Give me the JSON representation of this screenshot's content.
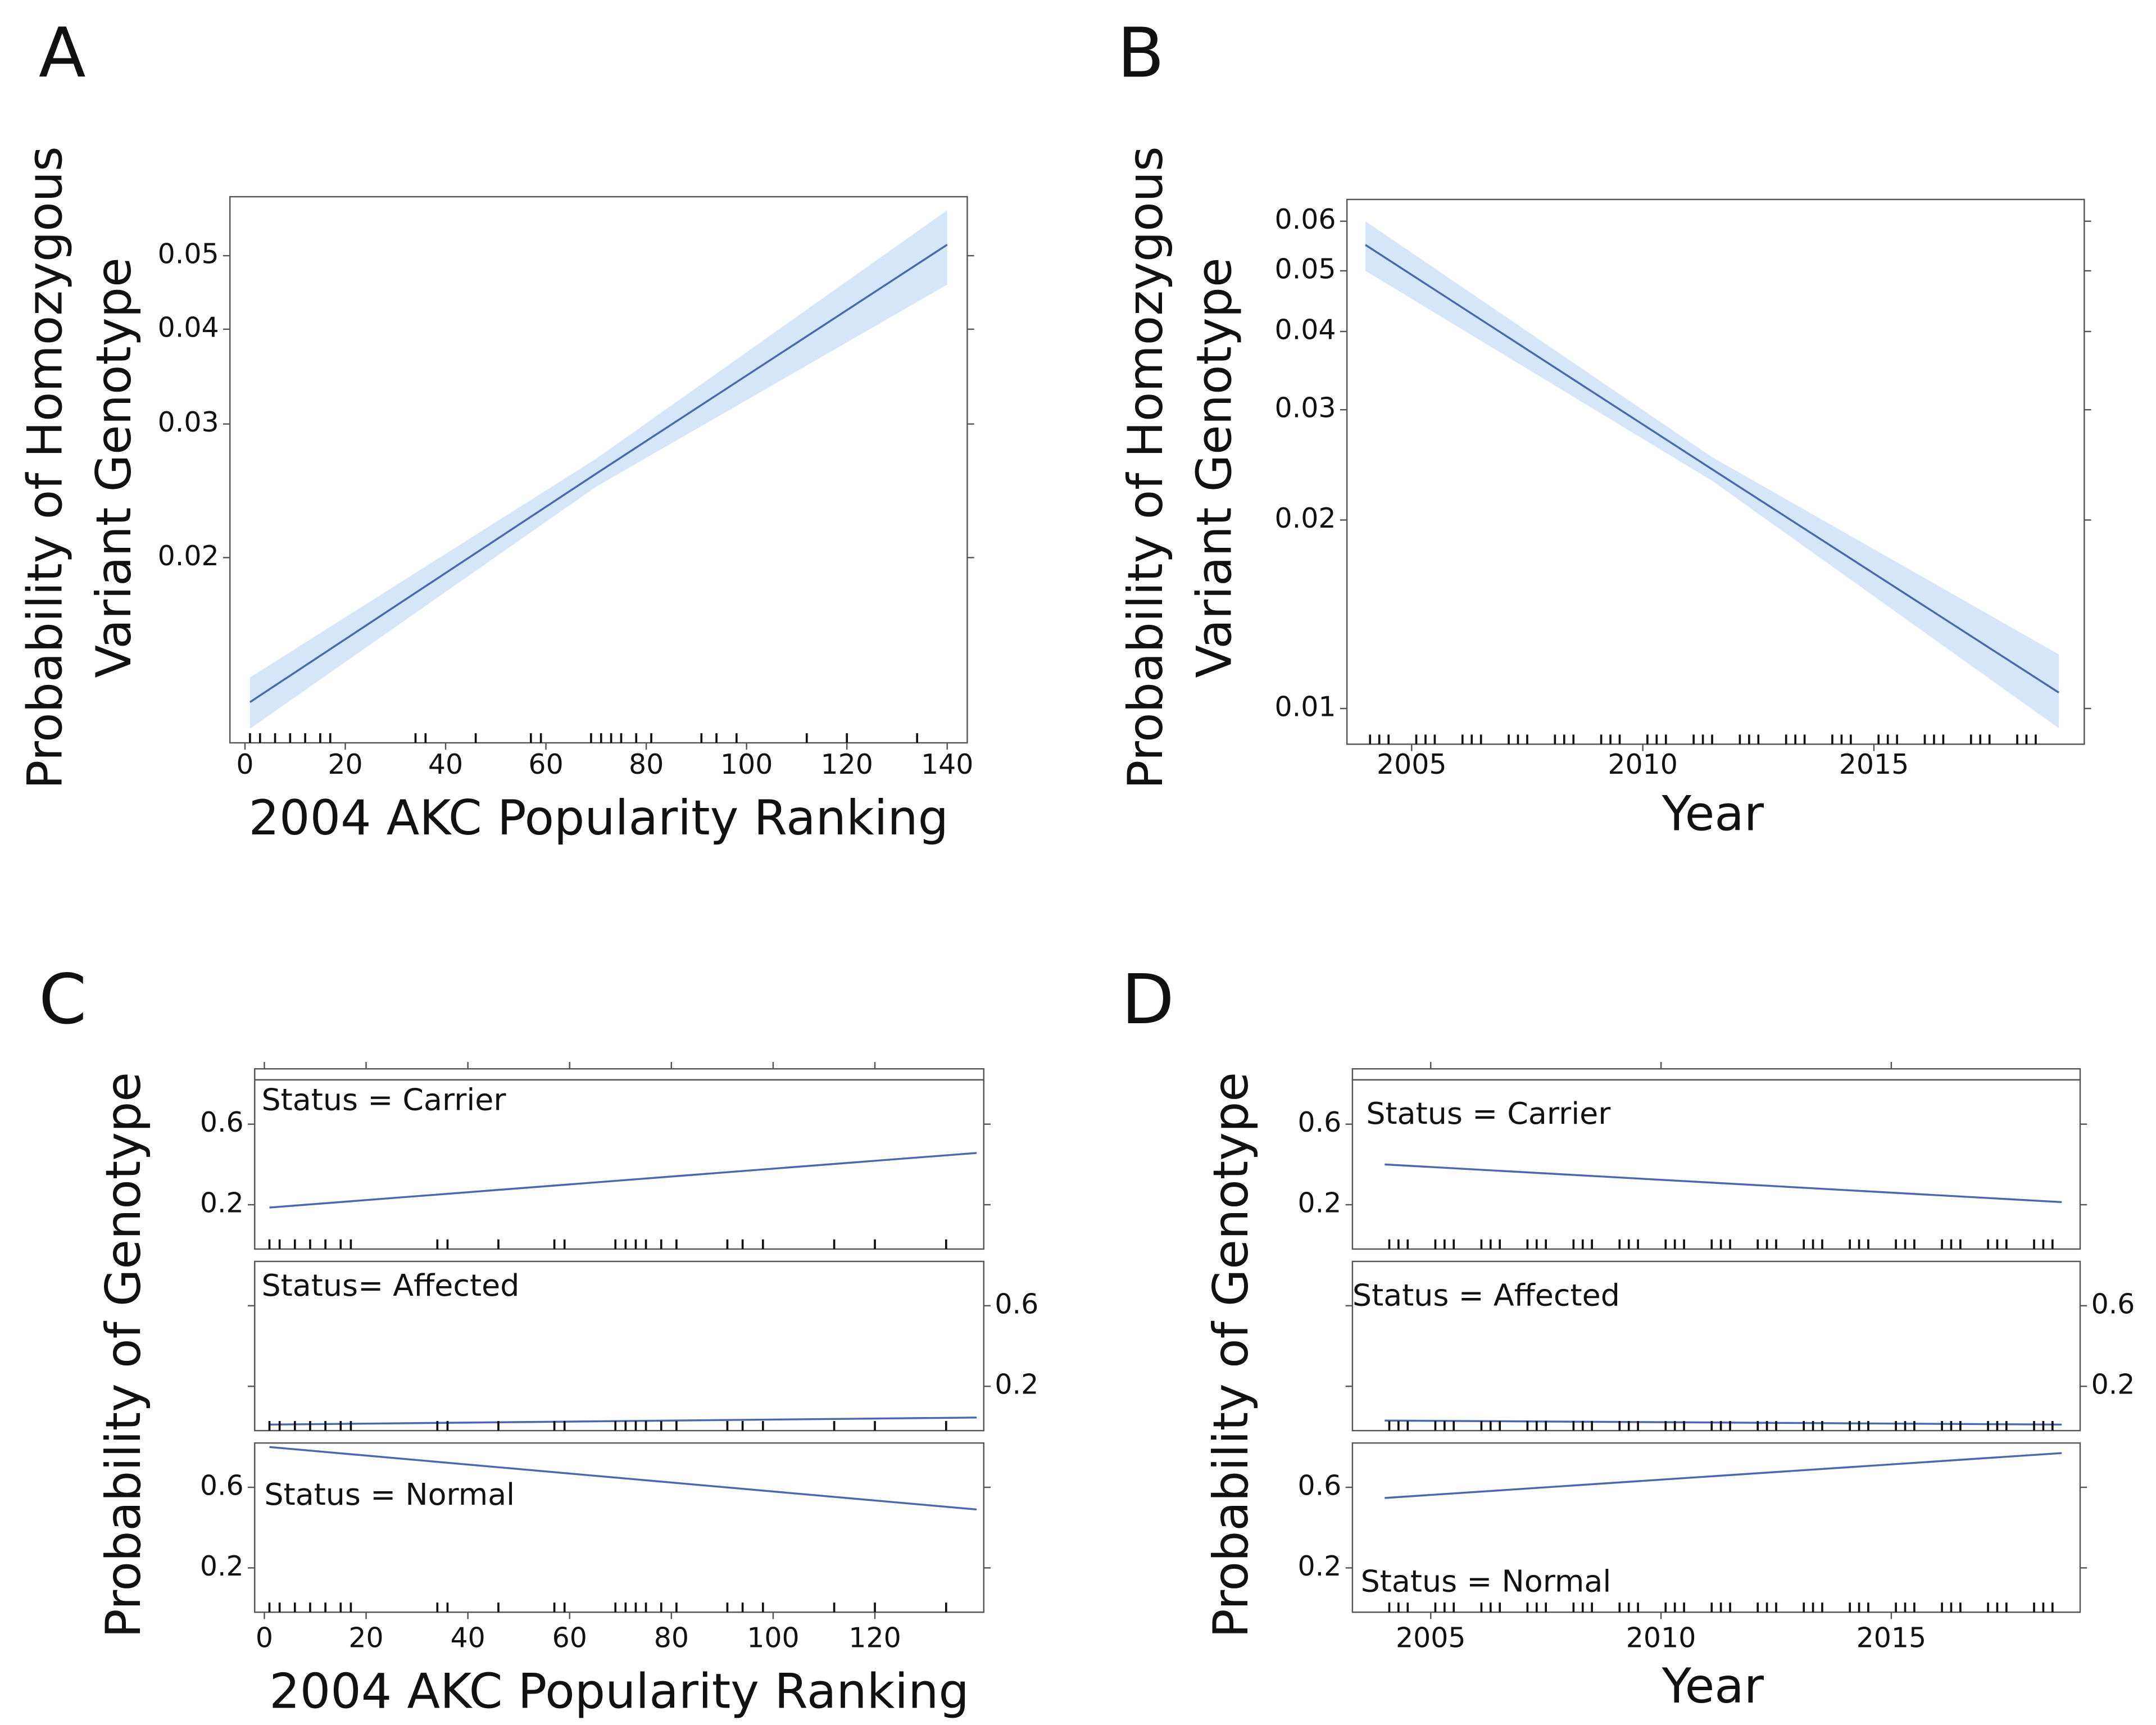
{
  "chart_data": [
    {
      "type": "line",
      "panel": "A",
      "ylabel": [
        "Probability of Homozygous",
        "Variant Genotype"
      ],
      "xlabel": "2004 AKC Popularity Ranking",
      "log_y": true,
      "xlim": [
        -3,
        144
      ],
      "ylim": [
        0.0114,
        0.0598
      ],
      "xticks": [
        0,
        20,
        40,
        60,
        80,
        100,
        120,
        140
      ],
      "yticks": [
        0.02,
        0.03,
        0.04,
        0.05
      ],
      "series": [
        {
          "color": "#4a68b0",
          "band_color": "#d4e6f7",
          "x": [
            1,
            70,
            140
          ],
          "values": [
            0.0129,
            0.0258,
            0.0517
          ],
          "lower": [
            0.0119,
            0.0248,
            0.0458
          ],
          "upper": [
            0.0139,
            0.027,
            0.0574
          ]
        }
      ],
      "rug": [
        1,
        3,
        6,
        9,
        12,
        15,
        17,
        34,
        36,
        46,
        57,
        59,
        69,
        71,
        73,
        75,
        78,
        81,
        91,
        94,
        98,
        112,
        120,
        134
      ],
      "rug_color": "#111"
    },
    {
      "type": "line",
      "panel": "B",
      "ylabel": [
        "Probability of Homozygous",
        "Variant Genotype"
      ],
      "xlabel": "Year",
      "log_y": true,
      "xlim": [
        2003.6,
        2019.55
      ],
      "ylim": [
        0.00877,
        0.065
      ],
      "xticks": [
        2005,
        2010,
        2015
      ],
      "yticks": [
        0.01,
        0.02,
        0.03,
        0.04,
        0.05,
        0.06
      ],
      "series": [
        {
          "color": "#4a68b0",
          "band_color": "#d4e6f7",
          "x": [
            2004,
            2011.5,
            2019
          ],
          "values": [
            0.055,
            0.0241,
            0.0106
          ],
          "lower": [
            0.05,
            0.0231,
            0.0093
          ],
          "upper": [
            0.06,
            0.0252,
            0.0122
          ]
        }
      ],
      "rug": [
        2004.1,
        2004.3,
        2004.5,
        2005.1,
        2005.3,
        2005.5,
        2006.1,
        2006.3,
        2006.5,
        2007.1,
        2007.3,
        2007.5,
        2008.1,
        2008.3,
        2008.5,
        2009.1,
        2009.3,
        2009.5,
        2010.1,
        2010.3,
        2010.5,
        2011.1,
        2011.3,
        2011.5,
        2012.1,
        2012.3,
        2012.5,
        2013.1,
        2013.3,
        2013.5,
        2014.1,
        2014.3,
        2014.5,
        2015.1,
        2015.3,
        2015.5,
        2016.1,
        2016.3,
        2016.5,
        2017.1,
        2017.3,
        2017.5,
        2018.1,
        2018.3,
        2018.5
      ],
      "rug_color": "#111"
    },
    {
      "type": "line",
      "panel": "C",
      "ylabel": [
        "Probability of Genotype"
      ],
      "xlabel": "2004 AKC Popularity Ranking",
      "log_y": false,
      "xlim": [
        -1.9,
        141.4
      ],
      "xticks": [
        0,
        20,
        40,
        60,
        80,
        100,
        120
      ],
      "facets": [
        {
          "label": "Status = Carrier",
          "ylim": [
            -0.02,
            0.82
          ],
          "yticks": [
            0.2,
            0.6
          ],
          "yaxis_side": "left",
          "series": [
            {
              "color": "#4a68b0",
              "x": [
                1,
                140
              ],
              "values": [
                0.186,
                0.457
              ]
            }
          ]
        },
        {
          "label": "Status= Affected",
          "ylim": [
            -0.02,
            0.82
          ],
          "yticks": [
            0.2,
            0.6
          ],
          "yaxis_side": "right",
          "series": [
            {
              "color": "#4a68b0",
              "x": [
                1,
                140
              ],
              "values": [
                0.01,
                0.045
              ]
            }
          ]
        },
        {
          "label": "Status = Normal",
          "ylim": [
            -0.02,
            0.82
          ],
          "yticks": [
            0.2,
            0.6
          ],
          "yaxis_side": "left",
          "series": [
            {
              "color": "#4a68b0",
              "x": [
                1,
                140
              ],
              "values": [
                0.8,
                0.49
              ]
            }
          ]
        }
      ],
      "rug": [
        1,
        3,
        6,
        9,
        12,
        15,
        17,
        34,
        36,
        46,
        57,
        59,
        69,
        71,
        73,
        75,
        78,
        81,
        91,
        94,
        98,
        112,
        120,
        134
      ],
      "rug_color": "#111"
    },
    {
      "type": "line",
      "panel": "D",
      "ylabel": [
        "Probability of Genotype"
      ],
      "xlabel": "Year",
      "log_y": false,
      "xlim": [
        2003.3,
        2019.1
      ],
      "xticks": [
        2005,
        2010,
        2015
      ],
      "facets": [
        {
          "label": "Status = Carrier",
          "ylim": [
            -0.02,
            0.82
          ],
          "yticks": [
            0.2,
            0.6
          ],
          "yaxis_side": "left",
          "series": [
            {
              "color": "#4a68b0",
              "x": [
                2004,
                2018.7
              ],
              "values": [
                0.4,
                0.213
              ]
            }
          ]
        },
        {
          "label": "Status = Affected",
          "ylim": [
            -0.02,
            0.82
          ],
          "yticks": [
            0.2,
            0.6
          ],
          "yaxis_side": "right",
          "series": [
            {
              "color": "#4a68b0",
              "x": [
                2004,
                2018.7
              ],
              "values": [
                0.03,
                0.01
              ]
            }
          ]
        },
        {
          "label": "Status = Normal",
          "ylim": [
            -0.02,
            0.82
          ],
          "yticks": [
            0.2,
            0.6
          ],
          "yaxis_side": "left",
          "series": [
            {
              "color": "#4a68b0",
              "x": [
                2004,
                2018.7
              ],
              "values": [
                0.547,
                0.77
              ]
            }
          ]
        }
      ],
      "rug": [
        2004.1,
        2004.3,
        2004.5,
        2005.1,
        2005.3,
        2005.5,
        2006.1,
        2006.3,
        2006.5,
        2007.1,
        2007.3,
        2007.5,
        2008.1,
        2008.3,
        2008.5,
        2009.1,
        2009.3,
        2009.5,
        2010.1,
        2010.3,
        2010.5,
        2011.1,
        2011.3,
        2011.5,
        2012.1,
        2012.3,
        2012.5,
        2013.1,
        2013.3,
        2013.5,
        2014.1,
        2014.3,
        2014.5,
        2015.1,
        2015.3,
        2015.5,
        2016.1,
        2016.3,
        2016.5,
        2017.1,
        2017.3,
        2017.5,
        2018.1,
        2018.3,
        2018.5
      ],
      "rug_color": "#111"
    }
  ]
}
